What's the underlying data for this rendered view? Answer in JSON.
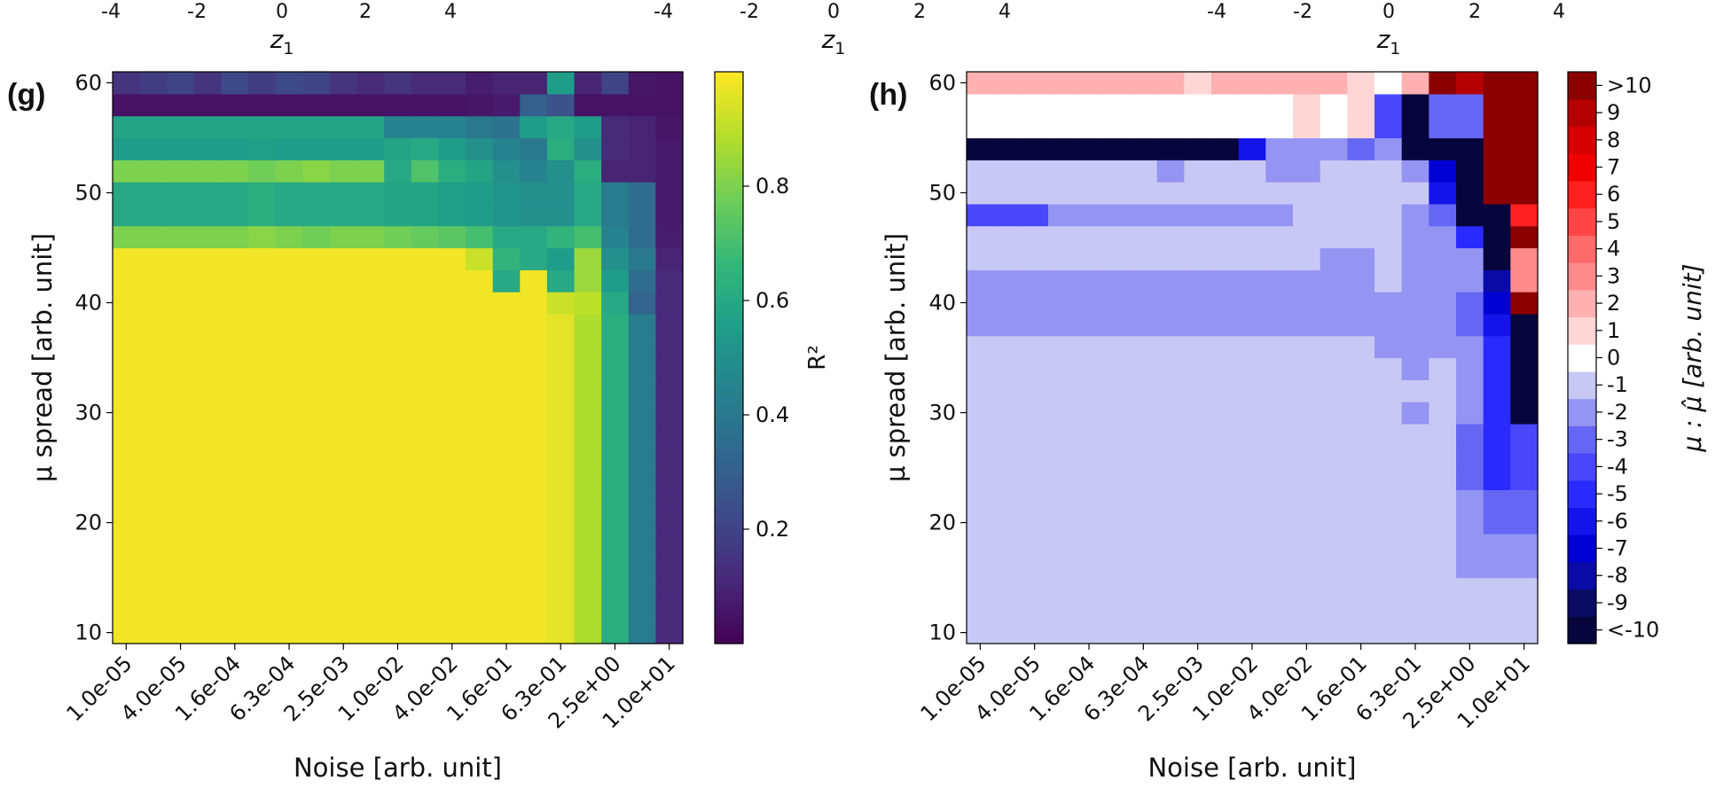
{
  "chart_data": [
    {
      "type": "heatmap",
      "panel": "(g)",
      "xlabel": "Noise [arb. unit]",
      "ylabel": "μ spread [arb. unit]",
      "colorbar_label": "R²",
      "colormap": "viridis",
      "vrange": [
        0.0,
        1.0
      ],
      "colorbar_ticks": [
        "0.2",
        "0.4",
        "0.6",
        "0.8"
      ],
      "colorbar_tick_values": [
        0.2,
        0.4,
        0.6,
        0.8
      ],
      "x_tick_labels": [
        "1.0e-05",
        "4.0e-05",
        "1.6e-04",
        "6.3e-04",
        "2.5e-03",
        "1.0e-02",
        "4.0e-02",
        "1.6e-01",
        "6.3e-01",
        "2.5e+00",
        "1.0e+01"
      ],
      "y_tick_labels": [
        "10",
        "20",
        "30",
        "40",
        "50",
        "60"
      ],
      "y_tick_values": [
        10,
        20,
        30,
        40,
        50,
        60
      ],
      "y_range": [
        9,
        61
      ],
      "n_cols": 21,
      "row_y": [
        10,
        12,
        14,
        16,
        18,
        20,
        22,
        24,
        26,
        28,
        30,
        32,
        34,
        36,
        38,
        40,
        42,
        44,
        46,
        48,
        50,
        52,
        54,
        56,
        58,
        60
      ],
      "row_groups": [
        {
          "rows": [
            0,
            14
          ],
          "values": [
            0.98,
            0.98,
            0.98,
            0.98,
            0.98,
            0.98,
            0.98,
            0.98,
            0.98,
            0.98,
            0.98,
            0.98,
            0.98,
            0.98,
            0.98,
            0.98,
            0.96,
            0.88,
            0.62,
            0.42,
            0.12
          ]
        },
        {
          "rows": [
            15,
            15
          ],
          "values": [
            0.98,
            0.98,
            0.98,
            0.98,
            0.98,
            0.98,
            0.98,
            0.98,
            0.98,
            0.98,
            0.98,
            0.98,
            0.98,
            0.98,
            0.98,
            0.98,
            0.92,
            0.9,
            0.6,
            0.32,
            0.12
          ]
        },
        {
          "rows": [
            16,
            16
          ],
          "values": [
            0.98,
            0.98,
            0.98,
            0.98,
            0.98,
            0.98,
            0.98,
            0.98,
            0.98,
            0.98,
            0.98,
            0.98,
            0.98,
            0.98,
            0.6,
            0.98,
            0.6,
            0.85,
            0.55,
            0.35,
            0.12
          ]
        },
        {
          "rows": [
            17,
            17
          ],
          "values": [
            0.98,
            0.98,
            0.98,
            0.98,
            0.98,
            0.98,
            0.98,
            0.98,
            0.98,
            0.98,
            0.98,
            0.98,
            0.98,
            0.92,
            0.65,
            0.6,
            0.55,
            0.85,
            0.5,
            0.4,
            0.1
          ]
        },
        {
          "rows": [
            18,
            18
          ],
          "values": [
            0.8,
            0.8,
            0.8,
            0.8,
            0.8,
            0.82,
            0.8,
            0.78,
            0.8,
            0.8,
            0.78,
            0.76,
            0.74,
            0.7,
            0.6,
            0.6,
            0.65,
            0.7,
            0.45,
            0.35,
            0.08
          ]
        },
        {
          "rows": [
            19,
            20
          ],
          "values": [
            0.6,
            0.6,
            0.6,
            0.6,
            0.6,
            0.62,
            0.6,
            0.6,
            0.6,
            0.6,
            0.58,
            0.58,
            0.56,
            0.55,
            0.52,
            0.5,
            0.5,
            0.6,
            0.42,
            0.35,
            0.07
          ]
        },
        {
          "rows": [
            21,
            21
          ],
          "values": [
            0.8,
            0.8,
            0.8,
            0.8,
            0.8,
            0.78,
            0.8,
            0.82,
            0.8,
            0.8,
            0.6,
            0.72,
            0.62,
            0.58,
            0.5,
            0.45,
            0.5,
            0.62,
            0.1,
            0.1,
            0.07
          ]
        },
        {
          "rows": [
            22,
            22
          ],
          "values": [
            0.55,
            0.55,
            0.55,
            0.55,
            0.55,
            0.56,
            0.55,
            0.55,
            0.55,
            0.55,
            0.58,
            0.6,
            0.55,
            0.5,
            0.45,
            0.4,
            0.62,
            0.5,
            0.12,
            0.1,
            0.07
          ]
        },
        {
          "rows": [
            23,
            23
          ],
          "values": [
            0.58,
            0.58,
            0.58,
            0.58,
            0.58,
            0.58,
            0.58,
            0.58,
            0.58,
            0.58,
            0.45,
            0.45,
            0.45,
            0.4,
            0.38,
            0.55,
            0.6,
            0.55,
            0.12,
            0.1,
            0.06
          ]
        },
        {
          "rows": [
            24,
            24
          ],
          "values": [
            0.05,
            0.05,
            0.05,
            0.05,
            0.05,
            0.05,
            0.05,
            0.05,
            0.05,
            0.05,
            0.05,
            0.05,
            0.05,
            0.06,
            0.07,
            0.3,
            0.25,
            0.05,
            0.05,
            0.05,
            0.05
          ]
        },
        {
          "rows": [
            25,
            25
          ],
          "values": [
            0.15,
            0.18,
            0.2,
            0.15,
            0.22,
            0.18,
            0.22,
            0.2,
            0.15,
            0.12,
            0.15,
            0.12,
            0.12,
            0.08,
            0.1,
            0.1,
            0.55,
            0.1,
            0.2,
            0.06,
            0.05
          ]
        }
      ]
    },
    {
      "type": "heatmap",
      "panel": "(h)",
      "xlabel": "Noise [arb. unit]",
      "ylabel": "μ spread [arb. unit]",
      "colorbar_label": "μ : μ̂ [arb. unit]",
      "colormap": "seismic-discrete",
      "colorbar_levels": [
        "<-10",
        "-9",
        "-8",
        "-7",
        "-6",
        "-5",
        "-4",
        "-3",
        "-2",
        "-1",
        "0",
        "1",
        "2",
        "3",
        "4",
        "5",
        "6",
        "7",
        "8",
        "9",
        ">10"
      ],
      "colorbar_level_colors": [
        "#06063d",
        "#0b0b63",
        "#0a0aa6",
        "#0000d2",
        "#1414ea",
        "#2a2aff",
        "#4848fa",
        "#6666f4",
        "#9494f3",
        "#c8c8f4",
        "#ffffff",
        "#ffd6d6",
        "#ffb0b0",
        "#ff8a8a",
        "#ff6a6a",
        "#ff4545",
        "#ff2020",
        "#f00000",
        "#d80000",
        "#b50000",
        "#8b0000"
      ],
      "x_tick_labels": [
        "1.0e-05",
        "4.0e-05",
        "1.6e-04",
        "6.3e-04",
        "2.5e-03",
        "1.0e-02",
        "4.0e-02",
        "1.6e-01",
        "6.3e-01",
        "2.5e+00",
        "1.0e+01"
      ],
      "y_tick_labels": [
        "10",
        "20",
        "30",
        "40",
        "50",
        "60"
      ],
      "y_tick_values": [
        10,
        20,
        30,
        40,
        50,
        60
      ],
      "y_range": [
        9,
        61
      ],
      "n_cols": 21,
      "row_y": [
        10,
        12,
        14,
        16,
        18,
        20,
        22,
        24,
        26,
        28,
        30,
        32,
        34,
        36,
        38,
        40,
        42,
        44,
        46,
        48,
        50,
        52,
        54,
        56,
        58,
        60
      ],
      "row_groups": [
        {
          "rows": [
            0,
            2
          ],
          "values": [
            -1,
            -1,
            -1,
            -1,
            -1,
            -1,
            -1,
            -1,
            -1,
            -1,
            -1,
            -1,
            -1,
            -1,
            -1,
            -1,
            -1,
            -1,
            -1,
            -1,
            -1
          ]
        },
        {
          "rows": [
            3,
            4
          ],
          "values": [
            -1,
            -1,
            -1,
            -1,
            -1,
            -1,
            -1,
            -1,
            -1,
            -1,
            -1,
            -1,
            -1,
            -1,
            -1,
            -1,
            -1,
            -1,
            -2,
            -2,
            -2
          ]
        },
        {
          "rows": [
            5,
            6
          ],
          "values": [
            -1,
            -1,
            -1,
            -1,
            -1,
            -1,
            -1,
            -1,
            -1,
            -1,
            -1,
            -1,
            -1,
            -1,
            -1,
            -1,
            -1,
            -1,
            -2,
            -3,
            -3
          ]
        },
        {
          "rows": [
            7,
            9
          ],
          "values": [
            -1,
            -1,
            -1,
            -1,
            -1,
            -1,
            -1,
            -1,
            -1,
            -1,
            -1,
            -1,
            -1,
            -1,
            -1,
            -1,
            -1,
            -1,
            -3,
            -5,
            -4
          ]
        },
        {
          "rows": [
            10,
            10
          ],
          "values": [
            -1,
            -1,
            -1,
            -1,
            -1,
            -1,
            -1,
            -1,
            -1,
            -1,
            -1,
            -1,
            -1,
            -1,
            -1,
            -1,
            -2,
            -1,
            -2,
            -5,
            -11
          ]
        },
        {
          "rows": [
            11,
            11
          ],
          "values": [
            -1,
            -1,
            -1,
            -1,
            -1,
            -1,
            -1,
            -1,
            -1,
            -1,
            -1,
            -1,
            -1,
            -1,
            -1,
            -1,
            -1,
            -1,
            -2,
            -5,
            -11
          ]
        },
        {
          "rows": [
            12,
            12
          ],
          "values": [
            -1,
            -1,
            -1,
            -1,
            -1,
            -1,
            -1,
            -1,
            -1,
            -1,
            -1,
            -1,
            -1,
            -1,
            -1,
            -1,
            -2,
            -1,
            -2,
            -5,
            -11
          ]
        },
        {
          "rows": [
            13,
            13
          ],
          "values": [
            -1,
            -1,
            -1,
            -1,
            -1,
            -1,
            -1,
            -1,
            -1,
            -1,
            -1,
            -1,
            -1,
            -1,
            -1,
            -2,
            -2,
            -2,
            -2,
            -5,
            -11
          ]
        },
        {
          "rows": [
            14,
            14
          ],
          "values": [
            -2,
            -2,
            -2,
            -2,
            -2,
            -2,
            -2,
            -2,
            -2,
            -2,
            -2,
            -2,
            -2,
            -2,
            -2,
            -2,
            -2,
            -2,
            -3,
            -6,
            -11
          ]
        },
        {
          "rows": [
            15,
            15
          ],
          "values": [
            -2,
            -2,
            -2,
            -2,
            -2,
            -2,
            -2,
            -2,
            -2,
            -2,
            -2,
            -2,
            -2,
            -2,
            -2,
            -2,
            -2,
            -2,
            -3,
            -7,
            11
          ]
        },
        {
          "rows": [
            16,
            16
          ],
          "values": [
            -2,
            -2,
            -2,
            -2,
            -2,
            -2,
            -2,
            -2,
            -2,
            -2,
            -2,
            -2,
            -2,
            -2,
            -2,
            -1,
            -2,
            -2,
            -2,
            -8,
            3
          ]
        },
        {
          "rows": [
            17,
            17
          ],
          "values": [
            -1,
            -1,
            -1,
            -1,
            -1,
            -1,
            -1,
            -1,
            -1,
            -1,
            -1,
            -1,
            -1,
            -2,
            -2,
            -1,
            -2,
            -2,
            -2,
            -10,
            3
          ]
        },
        {
          "rows": [
            18,
            18
          ],
          "values": [
            -1,
            -1,
            -1,
            -1,
            -1,
            -1,
            -1,
            -1,
            -1,
            -1,
            -1,
            -1,
            -1,
            -1,
            -1,
            -1,
            -2,
            -2,
            -5,
            -11,
            10
          ]
        },
        {
          "rows": [
            19,
            19
          ],
          "values": [
            -4,
            -4,
            -4,
            -2,
            -2,
            -2,
            -2,
            -2,
            -2,
            -2,
            -2,
            -2,
            -1,
            -1,
            -1,
            -1,
            -2,
            -3,
            -11,
            -11,
            6
          ]
        },
        {
          "rows": [
            20,
            20
          ],
          "values": [
            -1,
            -1,
            -1,
            -1,
            -1,
            -1,
            -1,
            -1,
            -1,
            -1,
            -1,
            -1,
            -1,
            -1,
            -1,
            -1,
            -1,
            -6,
            -11,
            11,
            11
          ]
        },
        {
          "rows": [
            21,
            21
          ],
          "values": [
            -1,
            -1,
            -1,
            -1,
            -1,
            -1,
            -1,
            -2,
            -1,
            -1,
            -1,
            -2,
            -2,
            -1,
            -1,
            -1,
            -2,
            -7,
            -10,
            11,
            11
          ]
        },
        {
          "rows": [
            22,
            22
          ],
          "values": [
            -11,
            -11,
            -11,
            -11,
            -11,
            -11,
            -11,
            -11,
            -11,
            -10,
            -6,
            -2,
            -2,
            -2,
            -3,
            -2,
            -11,
            -11,
            -11,
            11,
            11
          ]
        },
        {
          "rows": [
            23,
            23
          ],
          "values": [
            0,
            0,
            0,
            0,
            0,
            0,
            0,
            0,
            0,
            0,
            0,
            0,
            1,
            0,
            1,
            -4,
            -11,
            -3,
            -3,
            11,
            11
          ]
        },
        {
          "rows": [
            24,
            24
          ],
          "values": [
            0,
            0,
            0,
            0,
            0,
            0,
            0,
            0,
            0,
            0,
            0,
            0,
            1,
            0,
            1,
            -4,
            -11,
            -3,
            -3,
            11,
            11
          ]
        },
        {
          "rows": [
            25,
            25
          ],
          "values": [
            2,
            2,
            2,
            2,
            2,
            2,
            2,
            2,
            1,
            2,
            2,
            2,
            2,
            2,
            1,
            0,
            2,
            10,
            9,
            11,
            11
          ]
        }
      ]
    }
  ],
  "top_remnant": {
    "axis_title": "z",
    "axis_subscript": "1",
    "panels": [
      {
        "ticks": [
          "-4",
          "-2",
          "0",
          "2",
          "4"
        ]
      },
      {
        "ticks": [
          "-4",
          "-2",
          "0",
          "2",
          "4"
        ]
      },
      {
        "ticks": [
          "-4",
          "-2",
          "0",
          "2",
          "4"
        ]
      }
    ]
  }
}
